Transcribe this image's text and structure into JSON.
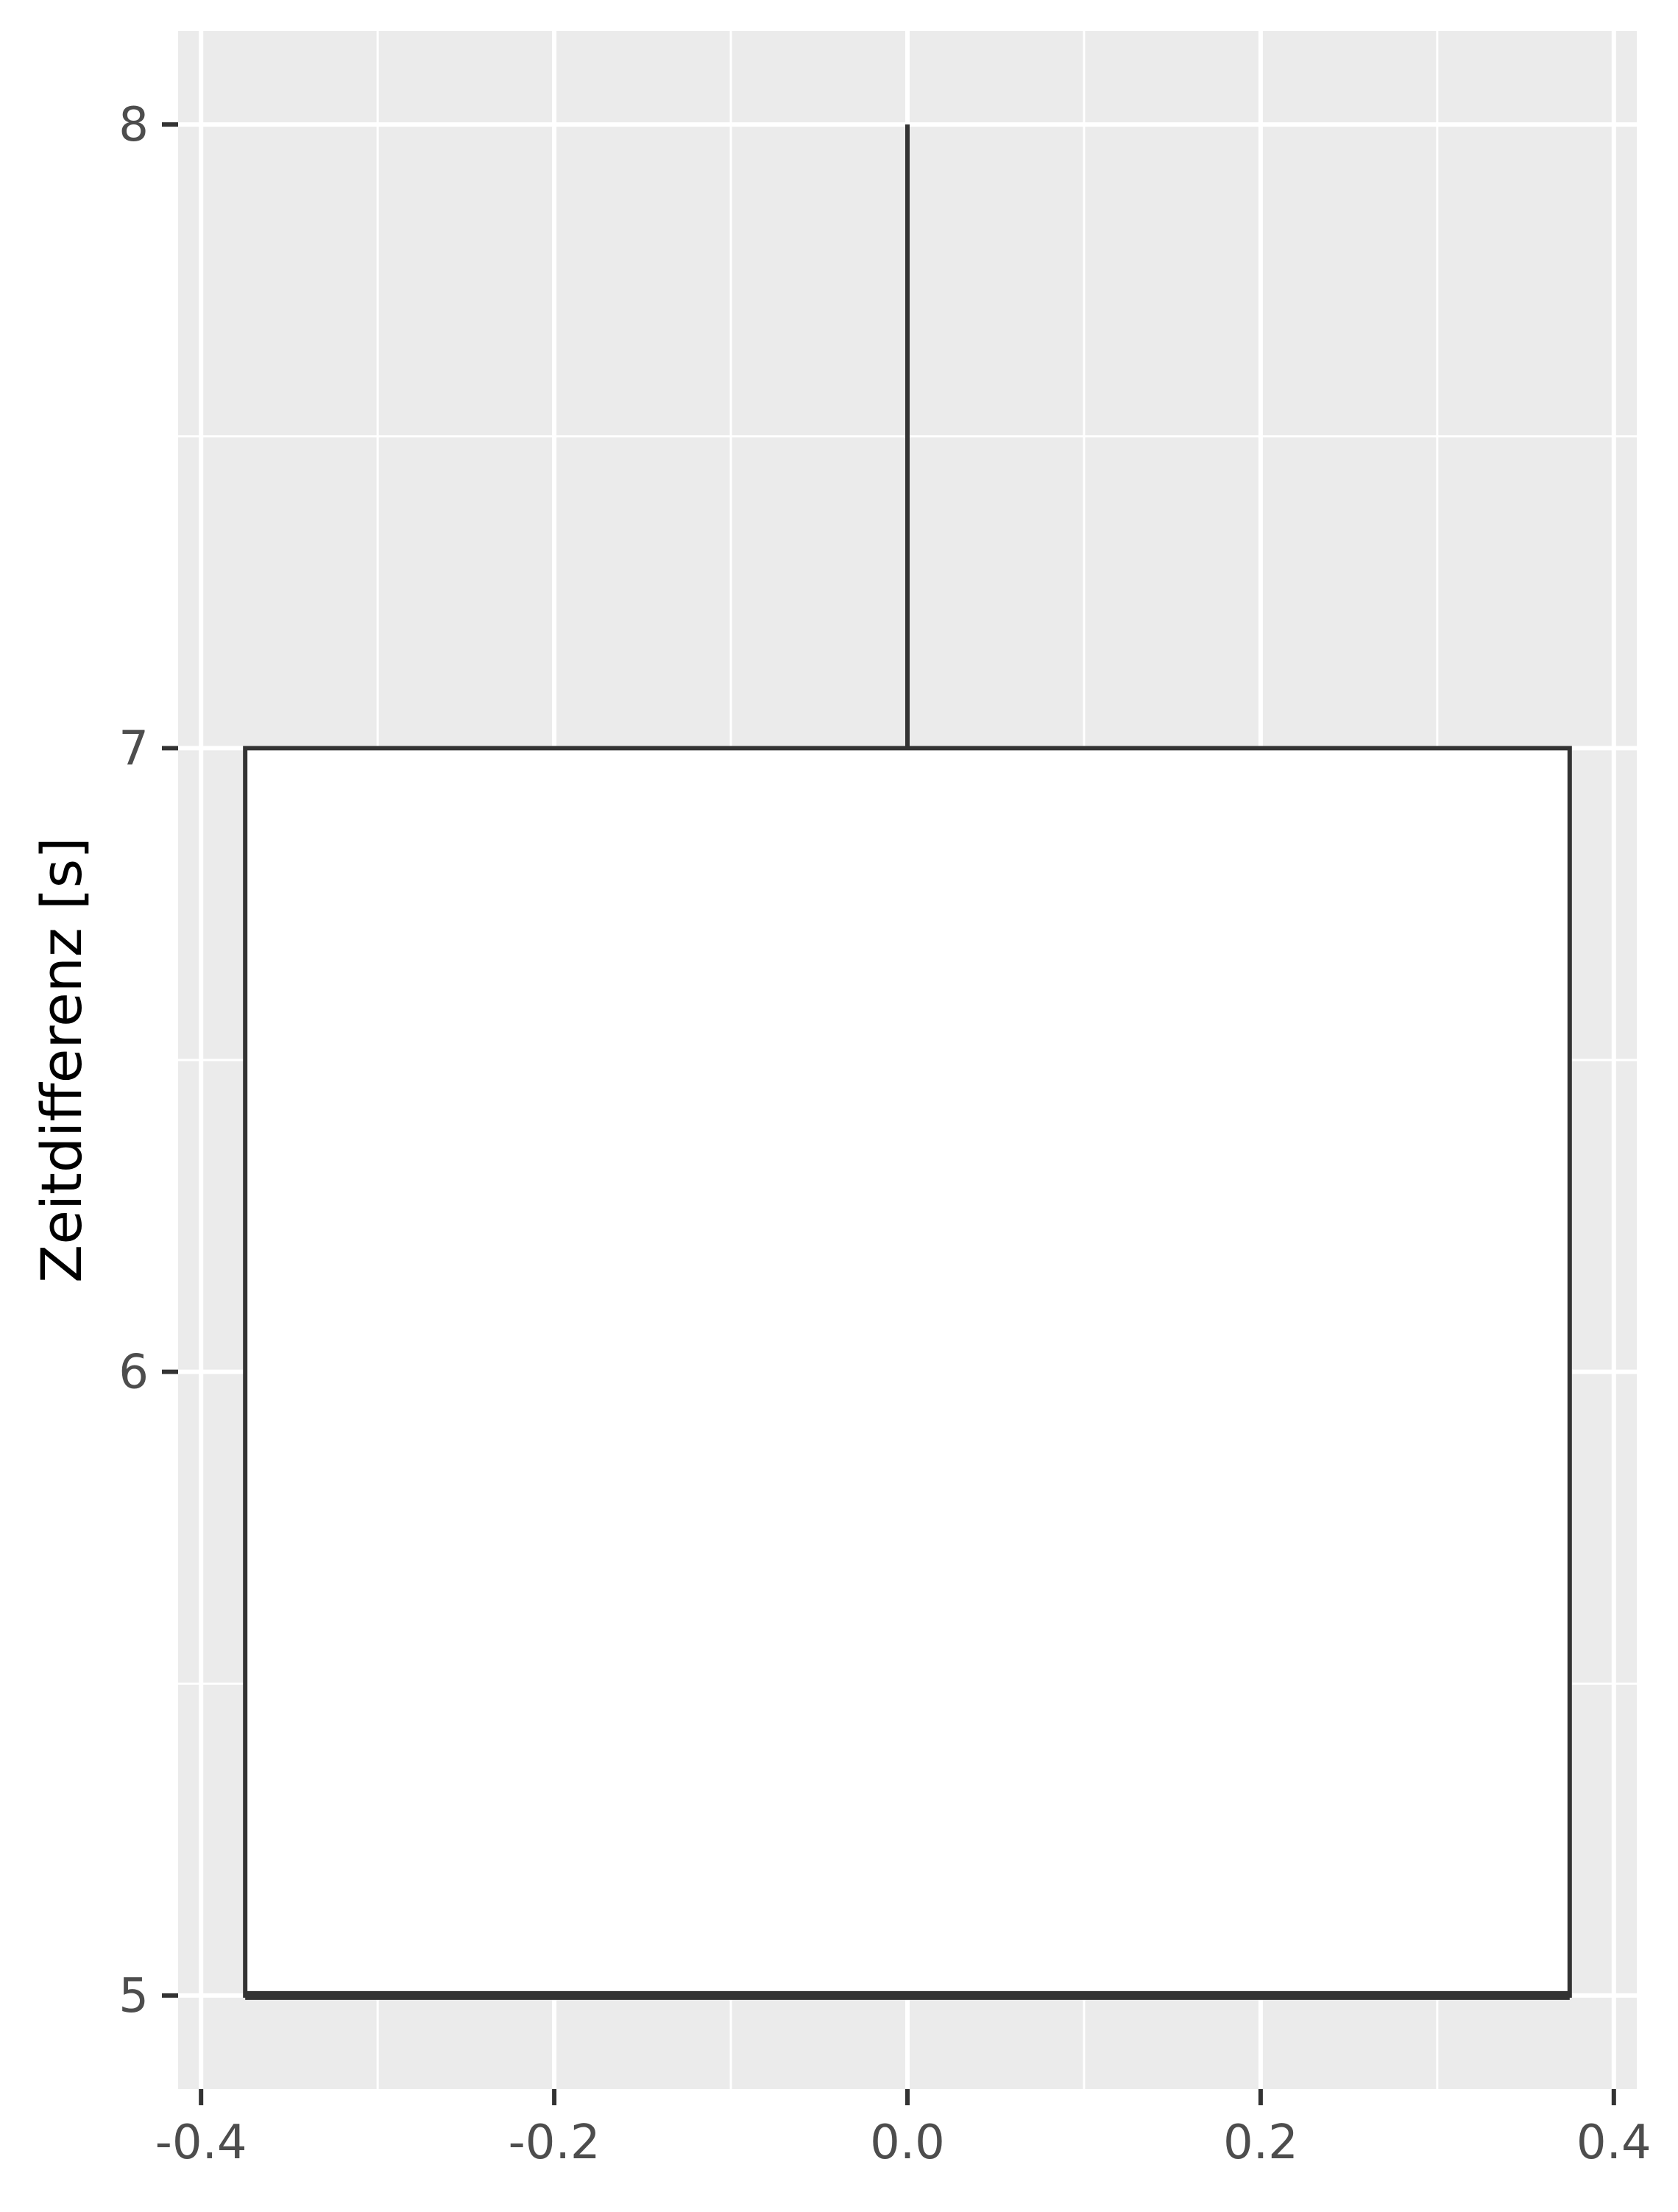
{
  "chart_data": {
    "type": "boxplot",
    "title": "",
    "xlabel": "",
    "ylabel": "Zeitdifferenz [s]",
    "x_ticks": [
      "-0.4",
      "-0.2",
      "0.0",
      "0.2",
      "0.4"
    ],
    "x_tick_values": [
      -0.4,
      -0.2,
      0.0,
      0.2,
      0.4
    ],
    "y_ticks": [
      "5",
      "6",
      "7",
      "8"
    ],
    "y_tick_values": [
      5,
      6,
      7,
      8
    ],
    "xlim": [
      -0.413,
      0.413
    ],
    "ylim": [
      4.85,
      8.15
    ],
    "grid": true,
    "boxes": [
      {
        "x": 0.0,
        "xmin": -0.375,
        "xmax": 0.375,
        "lower_whisker": 5,
        "q1": 5,
        "median": 5,
        "q3": 7,
        "upper_whisker": 8
      }
    ],
    "colors": {
      "panel_background": "#ebebeb",
      "grid": "#ffffff",
      "box_fill": "#ffffff",
      "box_line": "#333333",
      "tick": "#333333",
      "tick_label": "#4d4d4d"
    }
  }
}
